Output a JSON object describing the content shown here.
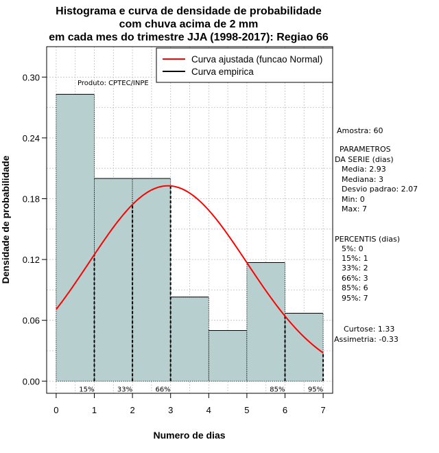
{
  "chart_data": {
    "type": "bar",
    "title_lines": [
      "Histograma e curva de densidade de probabilidade",
      "com chuva acima de 2 mm",
      "em cada mes do trimestre JJA (1998-2017): Regiao 66"
    ],
    "xlabel": "Numero de dias",
    "ylabel": "Densidade de probabilidade",
    "xlim": [
      -0.25,
      7.25
    ],
    "ylim": [
      -0.012,
      0.33
    ],
    "x_ticks": [
      0,
      1,
      2,
      3,
      4,
      5,
      6,
      7
    ],
    "y_ticks": [
      0.0,
      0.06,
      0.12,
      0.18,
      0.24,
      0.3
    ],
    "y_tick_labels": [
      "0.00",
      "0.06",
      "0.12",
      "0.18",
      "0.24",
      "0.30"
    ],
    "bins": [
      {
        "x0": 0,
        "x1": 1,
        "density": 0.283
      },
      {
        "x0": 1,
        "x1": 2,
        "density": 0.2
      },
      {
        "x0": 2,
        "x1": 3,
        "density": 0.2
      },
      {
        "x0": 3,
        "x1": 4,
        "density": 0.083
      },
      {
        "x0": 4,
        "x1": 5,
        "density": 0.05
      },
      {
        "x0": 5,
        "x1": 6,
        "density": 0.117
      },
      {
        "x0": 6,
        "x1": 7,
        "density": 0.067
      }
    ],
    "normal_fit": {
      "mean": 2.93,
      "sd": 2.07,
      "x_from": 0,
      "x_to": 7
    },
    "percentile_lines": [
      {
        "label": "15%",
        "x": 1
      },
      {
        "label": "33%",
        "x": 2
      },
      {
        "label": "66%",
        "x": 3
      },
      {
        "label": "85%",
        "x": 6
      },
      {
        "label": "95%",
        "x": 7
      }
    ],
    "legend": {
      "placement": "top-right",
      "items": [
        {
          "label": "Curva ajustada (funcao Normal)",
          "color": "#ff0000"
        },
        {
          "label": "Curva empirica",
          "color": "#000000"
        }
      ]
    },
    "product_note": "Produto: CPTEC/INPE",
    "grid": true,
    "colors": {
      "bar_fill": "#b8cfcf",
      "curve": "#ff0000",
      "grid": "#c0c0c0",
      "axis": "#000000"
    }
  },
  "side_panel": {
    "sample": "Amostra: 60",
    "params_header_1": "PARAMETROS",
    "params_header_2": "DA SERIE (dias)",
    "params": [
      "Media: 2.93",
      "Mediana: 3",
      "Desvio padrao: 2.07",
      "Min: 0",
      "Max: 7"
    ],
    "percentiles_header": "PERCENTIS (dias)",
    "percentiles": [
      "5%: 0",
      "15%: 1",
      "33%: 2",
      "66%: 3",
      "85%: 6",
      "95%: 7"
    ],
    "kurtosis": "Curtose: 1.33",
    "skewness": "Assimetria: -0.33"
  }
}
